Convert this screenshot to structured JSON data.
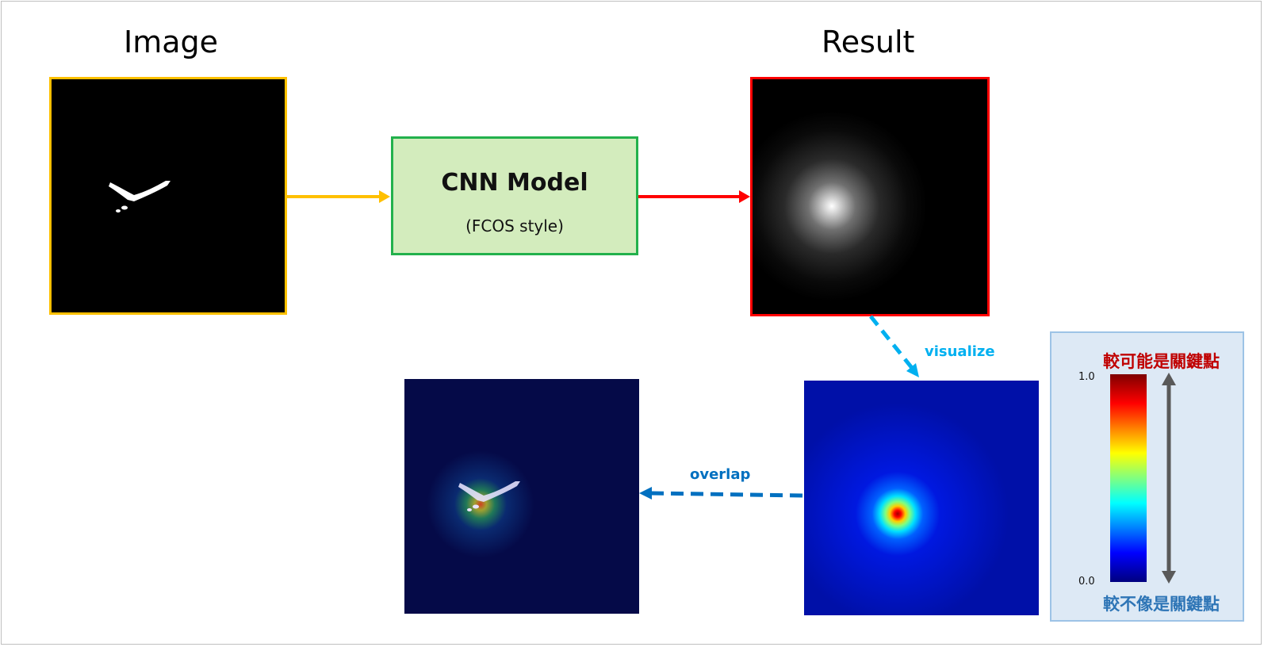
{
  "titles": {
    "image": "Image",
    "result": "Result"
  },
  "cnn": {
    "title": "CNN Model",
    "subtitle": "(FCOS style)"
  },
  "arrows": {
    "visualize": "visualize",
    "overlap": "overlap"
  },
  "legend": {
    "top_label": "較可能是關鍵點",
    "bottom_label": "較不像是關鍵點",
    "max_tick": "1.0",
    "min_tick": "0.0"
  },
  "colors": {
    "image_border": "#ffc000",
    "result_border": "#ff0000",
    "cnn_border": "#22b14c",
    "cnn_fill": "#d3ecbd",
    "arrow_yellow": "#ffc000",
    "arrow_red": "#ff0000",
    "arrow_cyan": "#00b0f0",
    "arrow_blue": "#0070c0",
    "legend_top_text": "#c00000",
    "legend_bottom_text": "#2e75b6"
  }
}
